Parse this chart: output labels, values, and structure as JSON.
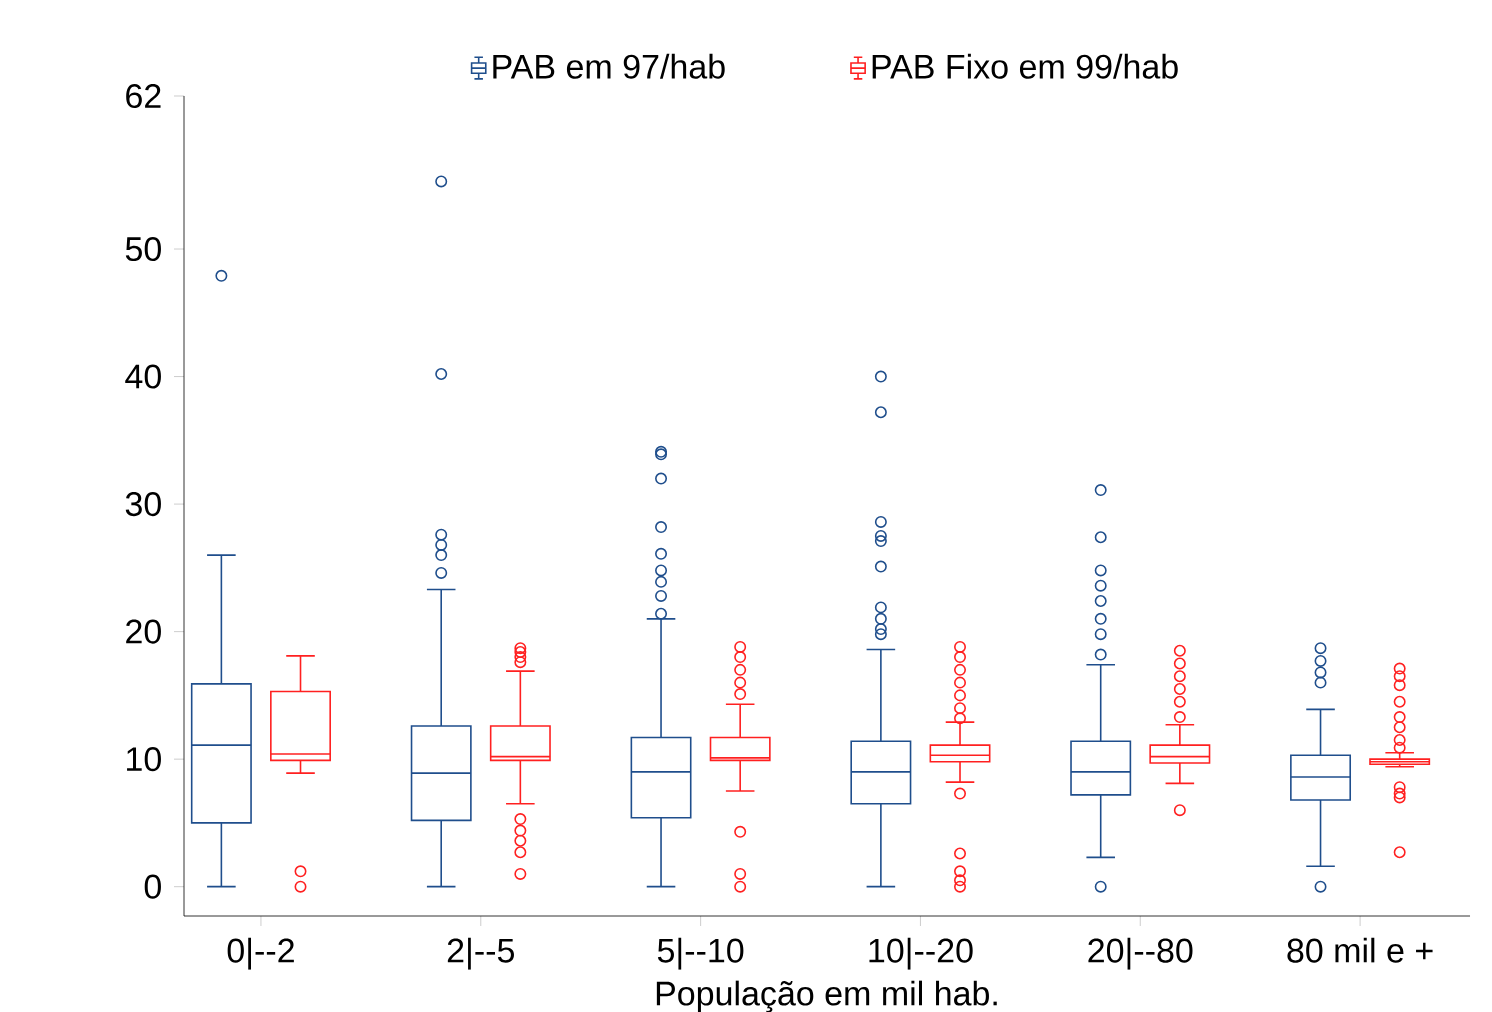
{
  "chart_data": {
    "type": "box",
    "xlabel": "População em mil hab.",
    "categories": [
      "0|--2",
      "2|--5",
      "5|--10",
      "10|--20",
      "20|--80",
      "80 mil e +"
    ],
    "ylim": [
      -2.3,
      62
    ],
    "yticks": [
      0,
      10,
      20,
      30,
      40,
      50,
      62
    ],
    "grid": false,
    "legend": "top",
    "marker": "circle",
    "series": [
      {
        "name": "PAB em 97/hab",
        "color": "#1f4e8c",
        "boxes": [
          {
            "low": 0,
            "q1": 5.0,
            "median": 11.1,
            "q3": 15.9,
            "high": 26.0,
            "outliers": [
              47.9
            ]
          },
          {
            "low": 0,
            "q1": 5.2,
            "median": 8.9,
            "q3": 12.6,
            "high": 23.3,
            "outliers": [
              55.3,
              40.2,
              27.6,
              26.8,
              26.0,
              24.6
            ]
          },
          {
            "low": 0,
            "q1": 5.4,
            "median": 9.0,
            "q3": 11.7,
            "high": 21.0,
            "outliers": [
              34.1,
              33.9,
              32.0,
              28.2,
              26.1,
              24.8,
              23.9,
              22.8,
              21.4
            ]
          },
          {
            "low": 0,
            "q1": 6.5,
            "median": 9.0,
            "q3": 11.4,
            "high": 18.6,
            "outliers": [
              40.0,
              37.2,
              28.6,
              27.5,
              27.1,
              25.1,
              21.9,
              21.0,
              20.2,
              19.8
            ]
          },
          {
            "low": 2.3,
            "q1": 7.2,
            "median": 9.0,
            "q3": 11.4,
            "high": 17.4,
            "outliers": [
              31.1,
              27.4,
              24.8,
              23.6,
              22.4,
              21.0,
              19.8,
              18.2,
              0
            ]
          },
          {
            "low": 1.6,
            "q1": 6.8,
            "median": 8.6,
            "q3": 10.3,
            "high": 13.9,
            "outliers": [
              18.7,
              17.7,
              16.8,
              16.0,
              0
            ]
          }
        ]
      },
      {
        "name": "PAB Fixo  em 99/hab",
        "color": "#ff2020",
        "boxes": [
          {
            "low": 8.9,
            "q1": 9.9,
            "median": 10.4,
            "q3": 15.3,
            "high": 18.1,
            "outliers": [
              1.2,
              0
            ]
          },
          {
            "low": 6.5,
            "q1": 9.9,
            "median": 10.2,
            "q3": 12.6,
            "high": 16.9,
            "outliers": [
              18.7,
              18.4,
              18.0,
              17.6,
              5.3,
              4.4,
              3.6,
              2.7,
              1.0
            ]
          },
          {
            "low": 7.5,
            "q1": 9.9,
            "median": 10.1,
            "q3": 11.7,
            "high": 14.3,
            "outliers": [
              18.8,
              18.0,
              17.0,
              16.0,
              15.1,
              4.3,
              1.0,
              0
            ]
          },
          {
            "low": 8.2,
            "q1": 9.8,
            "median": 10.3,
            "q3": 11.1,
            "high": 12.9,
            "outliers": [
              18.8,
              18.0,
              17.0,
              16.0,
              15.0,
              14.0,
              13.2,
              7.3,
              2.6,
              1.2,
              0.5,
              0
            ]
          },
          {
            "low": 8.1,
            "q1": 9.7,
            "median": 10.2,
            "q3": 11.1,
            "high": 12.7,
            "outliers": [
              18.5,
              17.5,
              16.5,
              15.5,
              14.5,
              13.3,
              6.0
            ]
          },
          {
            "low": 9.4,
            "q1": 9.6,
            "median": 9.8,
            "q3": 10.0,
            "high": 10.5,
            "outliers": [
              17.1,
              16.5,
              15.8,
              14.5,
              13.3,
              12.5,
              11.5,
              10.9,
              7.8,
              7.3,
              7.0,
              2.7
            ]
          }
        ]
      }
    ]
  }
}
